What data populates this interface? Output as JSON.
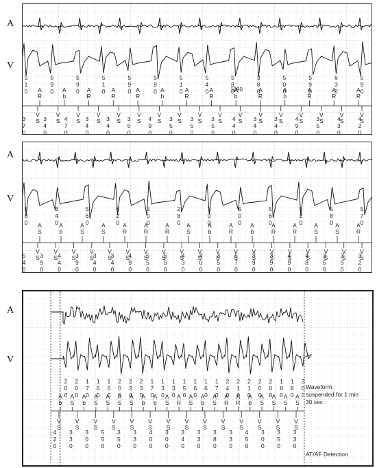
{
  "panels": [
    {
      "id": "strip-1",
      "leads": [
        "A",
        "V"
      ],
      "interval_note": "1090",
      "v_intervals": [
        "510",
        "590",
        "590",
        "510",
        "590",
        "590",
        "510",
        "540",
        "580",
        "380",
        "500",
        "590",
        "630",
        "590"
      ],
      "marker_row_1": [
        "A",
        "A",
        "A",
        "A",
        "A",
        "A",
        "A",
        "A",
        "A",
        "A",
        "A",
        "A",
        "A"
      ],
      "marker_row_2": [
        "R",
        "b",
        "R",
        "R",
        "R",
        "b",
        "R",
        "R",
        "b",
        "R",
        "b",
        "R",
        "R",
        "R"
      ],
      "v_markers": [
        "V",
        "V",
        "V",
        "V",
        "V",
        "V",
        "V",
        "V",
        "V",
        "V",
        "V",
        "V",
        "V",
        "V",
        "V",
        "V",
        "V"
      ],
      "v_markers_2": [
        "S",
        "S",
        "S",
        "S",
        "S",
        "S",
        "S",
        "S",
        "S",
        "S",
        "S",
        "S",
        "S",
        "S",
        "S",
        "S",
        "S"
      ],
      "a_intervals": [
        "370",
        "340",
        "470",
        "340",
        "340",
        "350",
        "490",
        "350",
        "350",
        "350",
        "440",
        "340",
        "340",
        "490",
        "350",
        "430",
        "420"
      ]
    },
    {
      "id": "strip-2",
      "leads": [
        "A",
        "V"
      ],
      "v_intervals": [
        "580",
        "340",
        "560",
        "620",
        "500",
        "280",
        "300",
        "500",
        "560",
        "520",
        "580",
        "570"
      ],
      "marker_row_1": [
        "A",
        "A",
        "A",
        "A",
        "A",
        "A",
        "A",
        "A",
        "A",
        "A",
        "A",
        "A",
        "A",
        "A",
        "A"
      ],
      "marker_row_2": [
        "S",
        "b",
        "S",
        "S",
        "R",
        "R",
        "R",
        "S",
        "b",
        "R",
        "b",
        "R",
        "R",
        "S",
        "S",
        "R"
      ],
      "v_markers": [
        "V",
        "V",
        "V",
        "V",
        "V",
        "V",
        "V",
        "V",
        "V",
        "V",
        "V",
        "V",
        "V",
        "V",
        "V",
        "V",
        "V",
        "V",
        "V"
      ],
      "v_markers_2": [
        "S",
        "S",
        "S",
        "S",
        "S",
        "S",
        "S",
        "S",
        "S",
        "S",
        "S",
        "S",
        "S",
        "S",
        "S",
        "S",
        "S",
        "S",
        "S"
      ],
      "a_intervals": [
        "540",
        "390",
        "440",
        "390",
        "340",
        "340",
        "490",
        "550",
        "550",
        "430",
        "400",
        "350",
        "570",
        "390",
        "390",
        "490",
        "480",
        "350",
        "350",
        "320"
      ]
    },
    {
      "id": "strip-3",
      "leads": [
        "A",
        "V"
      ],
      "v_intervals": [
        "200",
        "200",
        "170",
        "160",
        "160",
        "200",
        "220",
        "230",
        "170",
        "130",
        "130",
        "150",
        "160",
        "160",
        "170",
        "240",
        "210",
        "210",
        "200",
        "200",
        "180",
        "180",
        "300"
      ],
      "a_markers": [
        "A",
        "A",
        "A",
        "A",
        "A",
        "A",
        "A",
        "A",
        "A",
        "A",
        "A",
        "A",
        "A",
        "A",
        "A",
        "A",
        "A",
        "A",
        "A",
        "A",
        "A"
      ],
      "a_markers_2": [
        "b",
        "S",
        "b",
        "S",
        "S",
        "S",
        "S",
        "b",
        "b",
        "S",
        "R",
        "S",
        "b",
        "S",
        "R",
        "R",
        "b",
        "S",
        "S",
        "S",
        "S"
      ],
      "v_markers": [
        "V",
        "V",
        "V",
        "V",
        "V",
        "V",
        "V",
        "V",
        "V",
        "V",
        "V",
        "V",
        "V",
        "V"
      ],
      "v_markers_2": [
        "S",
        "S",
        "S",
        "S",
        "S",
        "S",
        "S",
        "S",
        "S",
        "S",
        "S",
        "S",
        "S",
        "S"
      ],
      "a_intervals": [
        "420",
        "330",
        "300",
        "550",
        "350",
        "330",
        "400",
        "300",
        "340",
        "330",
        "380",
        "330",
        "450",
        "300",
        "350",
        "330"
      ],
      "notes": {
        "suspended": "Waveform suspended for 1 min 30 sec",
        "detection": "AT/AF Detection"
      }
    }
  ],
  "colors": {
    "grid_minor": "#e2e2e2",
    "grid_major": "#c9c9c9",
    "trace": "#111111",
    "border": "#333333"
  }
}
